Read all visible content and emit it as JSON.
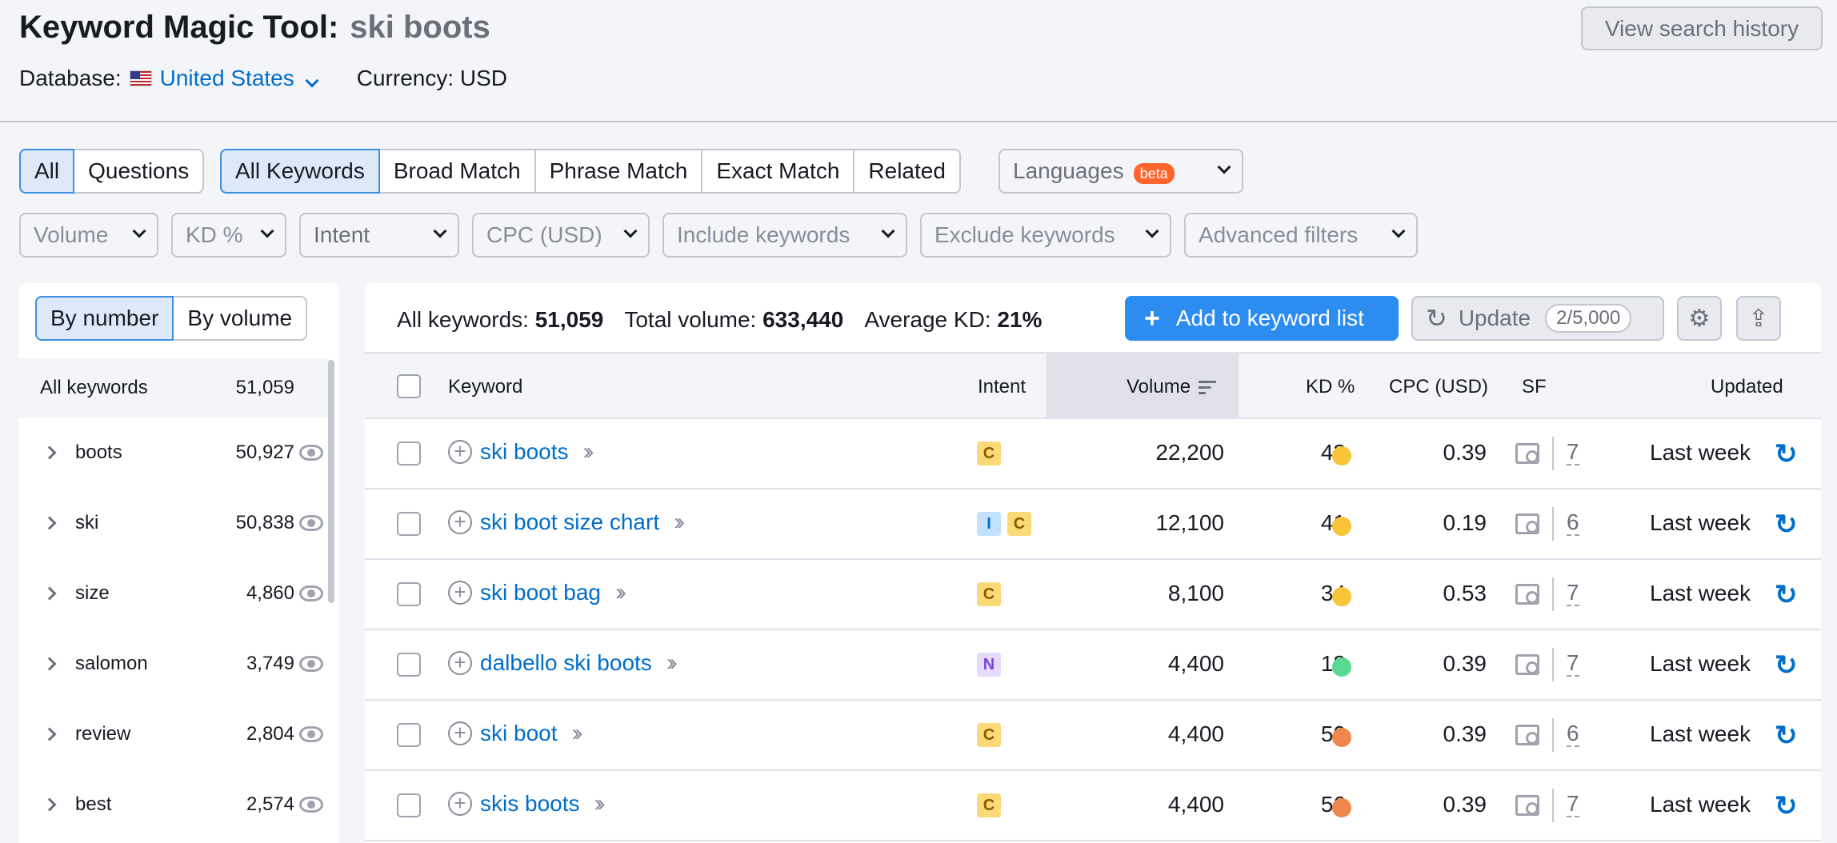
{
  "header": {
    "title": "Keyword Magic Tool:",
    "query": "ski boots",
    "history_button": "View search history",
    "database_label": "Database:",
    "database_value": "United States",
    "currency_label": "Currency: USD"
  },
  "filters": {
    "scope_tabs": [
      "All",
      "Questions"
    ],
    "match_tabs": [
      "All Keywords",
      "Broad Match",
      "Phrase Match",
      "Exact Match",
      "Related"
    ],
    "languages": "Languages",
    "beta": "beta",
    "dropdowns": [
      "Volume",
      "KD %",
      "Intent",
      "CPC (USD)",
      "Include keywords",
      "Exclude keywords",
      "Advanced filters"
    ]
  },
  "sidebar": {
    "toggle": [
      "By number",
      "By volume"
    ],
    "all_label": "All keywords",
    "all_count": "51,059",
    "groups": [
      {
        "name": "boots",
        "count": "50,927"
      },
      {
        "name": "ski",
        "count": "50,838"
      },
      {
        "name": "size",
        "count": "4,860"
      },
      {
        "name": "salomon",
        "count": "3,749"
      },
      {
        "name": "review",
        "count": "2,804"
      },
      {
        "name": "best",
        "count": "2,574"
      }
    ]
  },
  "summary": {
    "all_label": "All keywords:",
    "all_value": "51,059",
    "volume_label": "Total volume:",
    "volume_value": "633,440",
    "kd_label": "Average KD:",
    "kd_value": "21%",
    "add_button": "Add to keyword list",
    "update_button": "Update",
    "update_quota": "2/5,000"
  },
  "table": {
    "headers": {
      "keyword": "Keyword",
      "intent": "Intent",
      "volume": "Volume",
      "kd": "KD %",
      "cpc": "CPC (USD)",
      "sf": "SF",
      "updated": "Updated"
    },
    "rows": [
      {
        "keyword": "ski boots",
        "intent": [
          "C"
        ],
        "volume": "22,200",
        "kd": "43",
        "kd_color": "#f8c43a",
        "cpc": "0.39",
        "sf": "7",
        "updated": "Last week"
      },
      {
        "keyword": "ski boot size chart",
        "intent": [
          "I",
          "C"
        ],
        "volume": "12,100",
        "kd": "41",
        "kd_color": "#f8c43a",
        "cpc": "0.19",
        "sf": "6",
        "updated": "Last week"
      },
      {
        "keyword": "ski boot bag",
        "intent": [
          "C"
        ],
        "volume": "8,100",
        "kd": "34",
        "kd_color": "#f8c43a",
        "cpc": "0.53",
        "sf": "7",
        "updated": "Last week"
      },
      {
        "keyword": "dalbello ski boots",
        "intent": [
          "N"
        ],
        "volume": "4,400",
        "kd": "18",
        "kd_color": "#59d88f",
        "cpc": "0.39",
        "sf": "7",
        "updated": "Last week"
      },
      {
        "keyword": "ski boot",
        "intent": [
          "C"
        ],
        "volume": "4,400",
        "kd": "50",
        "kd_color": "#f0874d",
        "cpc": "0.39",
        "sf": "6",
        "updated": "Last week"
      },
      {
        "keyword": "skis boots",
        "intent": [
          "C"
        ],
        "volume": "4,400",
        "kd": "56",
        "kd_color": "#f0874d",
        "cpc": "0.39",
        "sf": "7",
        "updated": "Last week"
      }
    ]
  },
  "colors": {
    "accent": "#2d8cf0",
    "link": "#006dca"
  }
}
